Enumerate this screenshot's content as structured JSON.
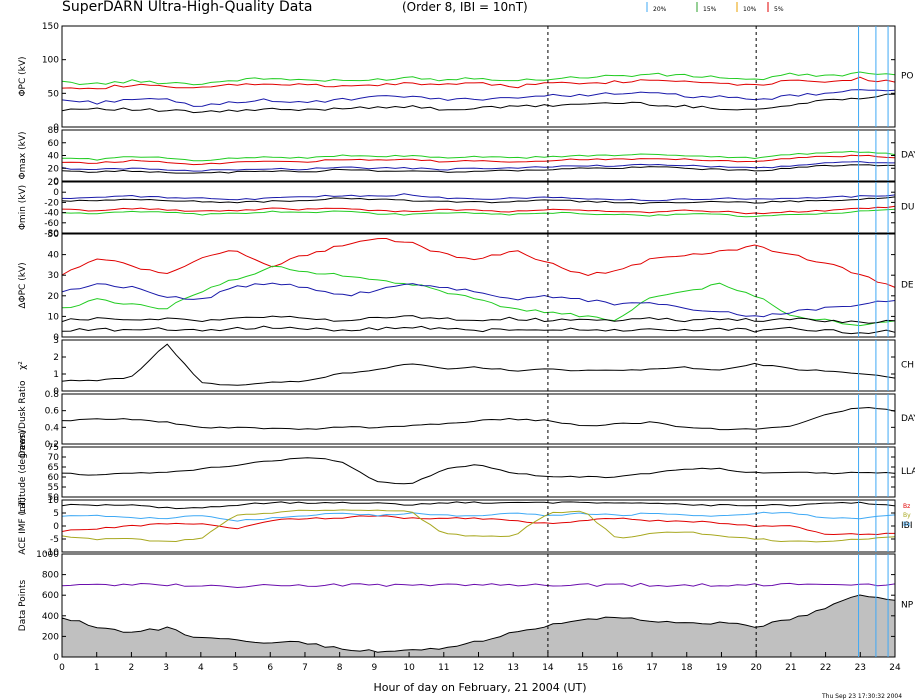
{
  "header": {
    "title": "SuperDARN Ultra-High-Quality Data",
    "subtitle": "(Order 8, IBI = 10nT)",
    "legend": [
      {
        "label": "20%",
        "color": "#3fa9f5"
      },
      {
        "label": "15%",
        "color": "#2ca02c"
      },
      {
        "label": "10%",
        "color": "#e8a000"
      },
      {
        "label": "5%",
        "color": "#e00000"
      }
    ]
  },
  "footer": {
    "xlabel": "Hour of day on February, 21 2004 (UT)",
    "timestamp": "Thu Sep 23 17:30:32 2004"
  },
  "colors": {
    "red": "#e00000",
    "green": "#22cc22",
    "blue": "#1a1aaa",
    "black": "#000000",
    "cyan": "#3fa9f5",
    "purple": "#6a0dad",
    "gray": "#c0c0c0",
    "olive": "#a8a820"
  },
  "chart_data": {
    "type": "line",
    "x_axis": {
      "range": [
        0,
        24
      ],
      "ticks": [
        "0",
        "1",
        "2",
        "3",
        "4",
        "5",
        "6",
        "7",
        "8",
        "9",
        "10",
        "11",
        "12",
        "13",
        "14",
        "15",
        "16",
        "17",
        "18",
        "19",
        "20",
        "21",
        "22",
        "23",
        "24"
      ],
      "dashed_at": [
        14,
        20
      ]
    },
    "vertical_markers": {
      "color": "cyan",
      "x": [
        22.95,
        23.45,
        23.8
      ]
    },
    "panels": [
      {
        "id": "phi_pc",
        "ylabel": "ΦPC (kV)",
        "ylim": [
          0,
          150
        ],
        "yticks": [
          "0",
          "50",
          "100",
          "150"
        ],
        "right_label": "PO",
        "series": [
          {
            "color": "red",
            "values": [
              60,
              58,
              62,
              60,
              57,
              63,
              64,
              62,
              60,
              62,
              65,
              63,
              66,
              60,
              65,
              66,
              67,
              70,
              68,
              66,
              62,
              70,
              68,
              72,
              67
            ]
          },
          {
            "color": "green",
            "values": [
              66,
              64,
              68,
              66,
              64,
              70,
              72,
              70,
              68,
              70,
              74,
              70,
              74,
              68,
              72,
              74,
              76,
              78,
              76,
              74,
              70,
              78,
              76,
              80,
              76
            ]
          },
          {
            "color": "black",
            "values": [
              26,
              28,
              26,
              24,
              22,
              24,
              26,
              25,
              28,
              30,
              30,
              26,
              28,
              30,
              32,
              34,
              36,
              34,
              30,
              28,
              26,
              32,
              40,
              44,
              48
            ]
          },
          {
            "color": "blue",
            "values": [
              40,
              36,
              42,
              40,
              30,
              38,
              40,
              36,
              40,
              44,
              46,
              40,
              42,
              44,
              46,
              48,
              50,
              50,
              46,
              44,
              40,
              46,
              50,
              54,
              56
            ]
          }
        ]
      },
      {
        "id": "phi_max",
        "ylabel": "Φmax (kV)",
        "ylim": [
          0,
          80
        ],
        "yticks": [
          "0",
          "20",
          "40",
          "60",
          "80"
        ],
        "right_label": "DAY",
        "series": [
          {
            "color": "red",
            "values": [
              30,
              28,
              32,
              30,
              26,
              30,
              32,
              30,
              34,
              32,
              34,
              30,
              32,
              30,
              32,
              34,
              34,
              36,
              34,
              32,
              30,
              36,
              38,
              40,
              36
            ]
          },
          {
            "color": "green",
            "values": [
              36,
              34,
              38,
              36,
              32,
              36,
              38,
              36,
              40,
              38,
              40,
              36,
              38,
              36,
              38,
              40,
              40,
              42,
              40,
              38,
              36,
              42,
              44,
              46,
              42
            ]
          },
          {
            "color": "black",
            "values": [
              16,
              14,
              16,
              14,
              12,
              14,
              16,
              14,
              18,
              16,
              16,
              14,
              16,
              16,
              18,
              20,
              20,
              22,
              20,
              18,
              16,
              20,
              24,
              26,
              24
            ]
          },
          {
            "color": "blue",
            "values": [
              20,
              18,
              20,
              18,
              16,
              18,
              20,
              18,
              22,
              20,
              20,
              18,
              20,
              20,
              22,
              24,
              24,
              26,
              24,
              22,
              20,
              24,
              28,
              30,
              28
            ]
          }
        ]
      },
      {
        "id": "phi_min",
        "ylabel": "Φmin (kV)",
        "ylim": [
          -80,
          20
        ],
        "yticks": [
          "-80",
          "-60",
          "-40",
          "-20",
          "0",
          "20"
        ],
        "right_label": "DU",
        "series": [
          {
            "color": "red",
            "values": [
              -34,
              -36,
              -32,
              -34,
              -38,
              -36,
              -32,
              -34,
              -30,
              -36,
              -38,
              -34,
              -36,
              -38,
              -34,
              -36,
              -38,
              -40,
              -36,
              -38,
              -42,
              -38,
              -36,
              -32,
              -28
            ]
          },
          {
            "color": "green",
            "values": [
              -40,
              -42,
              -38,
              -40,
              -44,
              -42,
              -38,
              -40,
              -36,
              -42,
              -44,
              -40,
              -42,
              -44,
              -40,
              -42,
              -44,
              -46,
              -42,
              -44,
              -48,
              -44,
              -42,
              -38,
              -34
            ]
          },
          {
            "color": "black",
            "values": [
              -18,
              -16,
              -14,
              -16,
              -18,
              -20,
              -18,
              -16,
              -12,
              -14,
              -16,
              -18,
              -20,
              -18,
              -16,
              -18,
              -20,
              -22,
              -20,
              -18,
              -20,
              -18,
              -16,
              -14,
              -10
            ]
          },
          {
            "color": "blue",
            "values": [
              -12,
              -10,
              -8,
              -10,
              -12,
              -14,
              -12,
              -10,
              -6,
              -8,
              -4,
              -12,
              -14,
              -12,
              -10,
              -12,
              -14,
              -16,
              -14,
              -12,
              -14,
              -12,
              -10,
              -8,
              -6
            ]
          }
        ]
      },
      {
        "id": "delta_phi",
        "ylabel": "ΔΦPC (kV)",
        "ylim": [
          0,
          50
        ],
        "yticks": [
          "0",
          "10",
          "20",
          "30",
          "40",
          "50"
        ],
        "right_label": "DE",
        "series": [
          {
            "color": "red",
            "values": [
              30,
              38,
              35,
              30,
              38,
              42,
              34,
              40,
              44,
              48,
              46,
              40,
              38,
              42,
              36,
              30,
              32,
              38,
              40,
              42,
              44,
              40,
              36,
              30,
              24
            ]
          },
          {
            "color": "green",
            "values": [
              14,
              18,
              16,
              14,
              22,
              28,
              34,
              32,
              30,
              28,
              26,
              22,
              18,
              14,
              12,
              10,
              8,
              20,
              22,
              26,
              20,
              10,
              8,
              6,
              8
            ]
          },
          {
            "color": "blue",
            "values": [
              22,
              26,
              24,
              20,
              18,
              24,
              26,
              24,
              20,
              22,
              26,
              24,
              22,
              18,
              20,
              18,
              16,
              16,
              14,
              12,
              10,
              12,
              14,
              16,
              18
            ]
          },
          {
            "color": "black",
            "values": [
              8,
              9,
              8,
              9,
              8,
              9,
              10,
              9,
              8,
              9,
              10,
              9,
              8,
              9,
              8,
              9,
              8,
              9,
              8,
              9,
              8,
              9,
              8,
              7,
              8
            ]
          },
          {
            "color": "black",
            "values": [
              3,
              4,
              3,
              4,
              3,
              4,
              5,
              4,
              3,
              4,
              5,
              4,
              3,
              4,
              3,
              4,
              3,
              4,
              3,
              4,
              3,
              4,
              3,
              2,
              3
            ]
          }
        ]
      },
      {
        "id": "chi2",
        "ylabel": "χ²",
        "ylim": [
          0,
          3
        ],
        "yticks": [
          "0",
          "1",
          "2",
          "3"
        ],
        "right_label": "CH",
        "series": [
          {
            "color": "black",
            "values": [
              0.6,
              0.6,
              0.8,
              2.8,
              0.5,
              0.3,
              0.5,
              0.6,
              1.0,
              1.2,
              1.6,
              1.3,
              1.4,
              1.2,
              1.3,
              1.2,
              1.2,
              1.3,
              1.4,
              1.2,
              1.6,
              1.3,
              1.2,
              1.0,
              0.8
            ]
          }
        ]
      },
      {
        "id": "ratio",
        "ylabel": "Dawn/Dusk Ratio",
        "ylim": [
          0.2,
          0.8
        ],
        "yticks": [
          "0.2",
          "0.4",
          "0.6",
          "0.8"
        ],
        "right_label": "DAY",
        "series": [
          {
            "color": "black",
            "values": [
              0.48,
              0.5,
              0.5,
              0.46,
              0.4,
              0.4,
              0.38,
              0.38,
              0.4,
              0.4,
              0.42,
              0.44,
              0.48,
              0.5,
              0.48,
              0.42,
              0.44,
              0.46,
              0.4,
              0.38,
              0.38,
              0.42,
              0.56,
              0.64,
              0.6
            ]
          }
        ]
      },
      {
        "id": "latitude",
        "ylabel": "Latitude (degrees)",
        "ylim": [
          50,
          75
        ],
        "yticks": [
          "50",
          "55",
          "60",
          "65",
          "70",
          "75"
        ],
        "right_label": "LLA",
        "series": [
          {
            "color": "black",
            "values": [
              62,
              61,
              62,
              62,
              64,
              66,
              68,
              70,
              68,
              58,
              56,
              64,
              66,
              62,
              60,
              60,
              60,
              62,
              64,
              64,
              62,
              62,
              62,
              62,
              62
            ]
          }
        ]
      },
      {
        "id": "imf",
        "ylabel": "ACE IMF (nT)",
        "ylim": [
          -10,
          10
        ],
        "yticks": [
          "-10",
          "-5",
          "0",
          "5",
          "10"
        ],
        "right_label": "IBI",
        "right_sub": [
          "Bz",
          "By",
          "Bx"
        ],
        "series": [
          {
            "color": "black",
            "values": [
              8,
              8,
              8,
              7,
              7,
              8,
              9,
              9,
              9,
              9,
              8,
              9,
              9,
              9,
              9,
              9,
              9,
              9,
              8,
              8,
              8,
              8,
              9,
              9,
              8
            ]
          },
          {
            "color": "red",
            "values": [
              -2,
              -1,
              0,
              1,
              1,
              -1,
              2,
              3,
              3,
              4,
              3,
              3,
              3,
              2,
              1,
              2,
              3,
              2,
              2,
              1,
              0,
              0,
              -3,
              -3,
              -3
            ]
          },
          {
            "color": "cyan",
            "values": [
              4,
              4,
              3,
              3,
              4,
              2,
              3,
              4,
              5,
              4,
              5,
              4,
              4,
              5,
              4,
              5,
              4,
              5,
              4,
              4,
              5,
              5,
              3,
              3,
              4
            ]
          },
          {
            "color": "olive",
            "values": [
              -4,
              -5,
              -5,
              -6,
              -5,
              4,
              5,
              6,
              6,
              6,
              6,
              -3,
              -4,
              -4,
              5,
              6,
              -5,
              -3,
              -2,
              -4,
              -5,
              -6,
              -6,
              -5,
              -4
            ]
          }
        ]
      },
      {
        "id": "data_points",
        "ylabel": "Data Points",
        "ylim": [
          0,
          1000
        ],
        "yticks": [
          "0",
          "200",
          "400",
          "600",
          "800",
          "1000"
        ],
        "right_label": "NP",
        "series": [
          {
            "color": "gray",
            "fill": true,
            "values": [
              380,
              300,
              240,
              280,
              180,
              160,
              140,
              140,
              80,
              60,
              60,
              80,
              150,
              240,
              300,
              360,
              380,
              360,
              320,
              340,
              300,
              360,
              480,
              600,
              560
            ]
          },
          {
            "color": "purple",
            "values": [
              700,
              700,
              700,
              700,
              700,
              680,
              700,
              700,
              700,
              700,
              700,
              700,
              700,
              700,
              700,
              700,
              700,
              700,
              700,
              700,
              700,
              700,
              700,
              700,
              700
            ]
          }
        ]
      }
    ]
  }
}
